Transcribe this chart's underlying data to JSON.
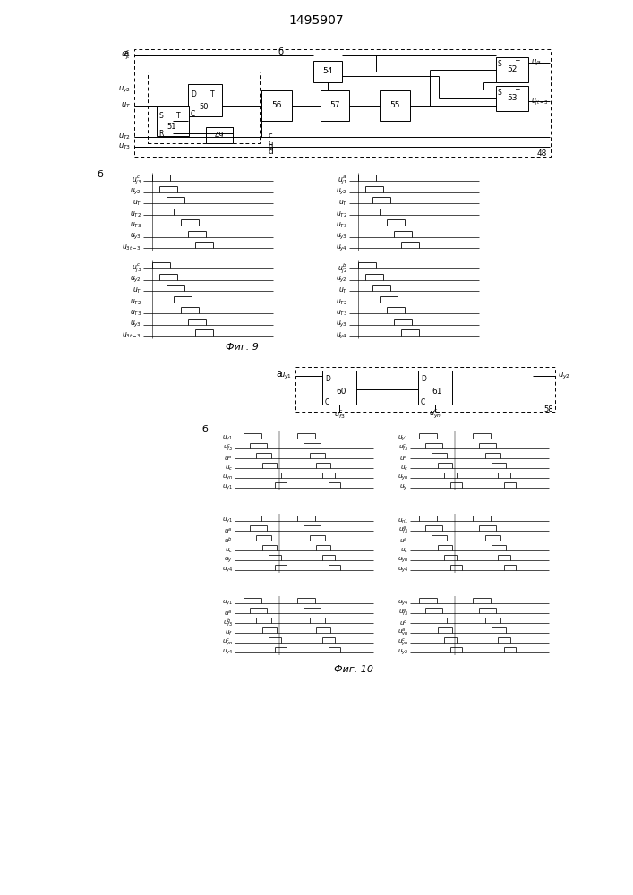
{
  "title": "1495907",
  "background": "#ffffff",
  "line_color": "#000000",
  "box_color": "#ffffff",
  "fig9_caption": "Фиг. 9",
  "fig10_caption": "Фиг. 10",
  "label_a": "a",
  "label_b": "б",
  "fig9_timing_left_labels_top": [
    "$u^c_{j3}$",
    "$u_{y2}$",
    "$u_T$",
    "$u_{T2}$",
    "$u_{T3}$",
    "$u_{y3}$",
    "$u_{3t-3}$"
  ],
  "fig9_timing_left_labels_bot": [
    "$u^c_{j3}$",
    "$u_{y2}$",
    "$u_T$",
    "$u_{T2}$",
    "$u_{T3}$",
    "$u_{y3}$",
    "$u_{3t-3}$"
  ],
  "fig9_timing_right_labels_top": [
    "$u^a_{j1}$",
    "$u_{y2}$",
    "$u_T$",
    "$u_{T2}$",
    "$u_{T3}$",
    "$u_{y3}$",
    "$u_{y4}$"
  ],
  "fig9_timing_right_labels_bot": [
    "$u^b_{j2}$",
    "$u_{y2}$",
    "$u_T$",
    "$u_{T2}$",
    "$u_{T3}$",
    "$u_{y3}$",
    "$u_{y4}$"
  ]
}
